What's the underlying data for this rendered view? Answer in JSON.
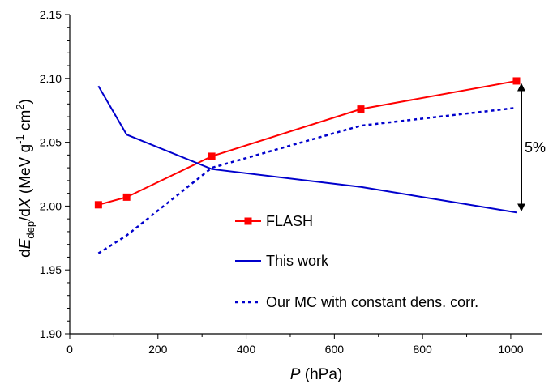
{
  "chart_data": {
    "type": "line",
    "xlabel_var": "P",
    "xlabel_unit": " (hPa)",
    "ylabel": {
      "d1": "d",
      "E": "E",
      "dep": "dep",
      "slash": "/d",
      "X": "X",
      "unit_open": " (MeV g",
      "exp1": "-1",
      "cm": " cm",
      "exp2": "2",
      "close": ")"
    },
    "xlim": [
      0,
      1070
    ],
    "ylim": [
      1.9,
      2.15
    ],
    "xticks": [
      0,
      200,
      400,
      600,
      800,
      1000
    ],
    "xtick_labels": [
      "0",
      "200",
      "400",
      "600",
      "800",
      "1000"
    ],
    "yticks": [
      1.9,
      1.95,
      2.0,
      2.05,
      2.1,
      2.15
    ],
    "ytick_labels": [
      "1.90",
      "1.95",
      "2.00",
      "2.05",
      "2.10",
      "2.15"
    ],
    "series": [
      {
        "name": "FLASH",
        "color": "#ff0000",
        "style": "solid",
        "marker": "square",
        "x": [
          65,
          129,
          322,
          660,
          1013
        ],
        "y": [
          2.001,
          2.007,
          2.039,
          2.076,
          2.098
        ]
      },
      {
        "name": "This work",
        "color": "#0000cc",
        "style": "solid",
        "marker": "none",
        "x": [
          65,
          129,
          322,
          660,
          1013
        ],
        "y": [
          2.094,
          2.056,
          2.029,
          2.015,
          1.995
        ]
      },
      {
        "name": "Our MC with constant dens. corr.",
        "color": "#0000cc",
        "style": "dashed",
        "marker": "none",
        "x": [
          65,
          129,
          322,
          660,
          1013
        ],
        "y": [
          1.963,
          1.977,
          2.03,
          2.063,
          2.077
        ]
      }
    ],
    "annotation": {
      "text": "5%",
      "x": 1013,
      "y_from": 1.995,
      "y_to": 2.097
    },
    "legend_position": "center"
  }
}
